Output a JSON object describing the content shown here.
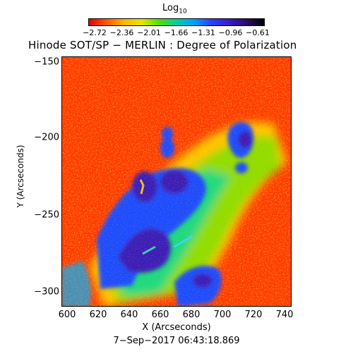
{
  "colorbar": {
    "label": "Log",
    "label_sub": "10",
    "ticks": [
      "−2.72",
      "−2.36",
      "−2.01",
      "−1.66",
      "−1.31",
      "−0.96",
      "−0.61"
    ],
    "colors": [
      "#e00000",
      "#ff5a00",
      "#ffb400",
      "#e6e600",
      "#4fe000",
      "#00d0a0",
      "#00a0ff",
      "#2a40ff",
      "#3a1cc8",
      "#2a0a6a",
      "#000000"
    ]
  },
  "title": "Hinode SOT/SP − MERLIN : Degree of Polarization",
  "axes": {
    "y_ticks": [
      "−150",
      "−200",
      "−250",
      "−300"
    ],
    "x_ticks": [
      "600",
      "620",
      "640",
      "660",
      "680",
      "700",
      "720",
      "740"
    ],
    "ylabel": "Y (Arcseconds)",
    "xlabel": "X (Arcseconds)"
  },
  "timestamp": "7−Sep−2017 06:43:18.869"
}
